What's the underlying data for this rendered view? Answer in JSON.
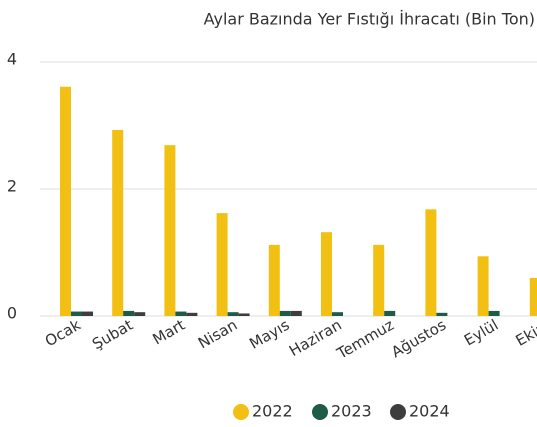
{
  "chart_data": {
    "type": "bar",
    "title": "Aylar Bazında Yer Fıstığı İhracatı (Bin Ton)",
    "categories": [
      "Ocak",
      "Şubat",
      "Mart",
      "Nisan",
      "Mayıs",
      "Haziran",
      "Temmuz",
      "Ağustos",
      "Eylül",
      "Ekim"
    ],
    "series": [
      {
        "name": "2022",
        "color": "#f2c012",
        "values": [
          3.61,
          2.93,
          2.69,
          1.62,
          1.12,
          1.32,
          1.12,
          1.68,
          0.94,
          0.6
        ]
      },
      {
        "name": "2023",
        "color": "#1e5b48",
        "values": [
          0.07,
          0.08,
          0.07,
          0.06,
          0.08,
          0.06,
          0.08,
          0.05,
          0.08,
          null
        ]
      },
      {
        "name": "2024",
        "color": "#3d3d3d",
        "values": [
          0.07,
          0.06,
          0.05,
          0.04,
          0.08,
          null,
          null,
          null,
          null,
          null
        ]
      }
    ],
    "ylim": [
      0,
      4
    ],
    "yticks": [
      0,
      2,
      4
    ],
    "grid": true,
    "legend": "bottom"
  }
}
